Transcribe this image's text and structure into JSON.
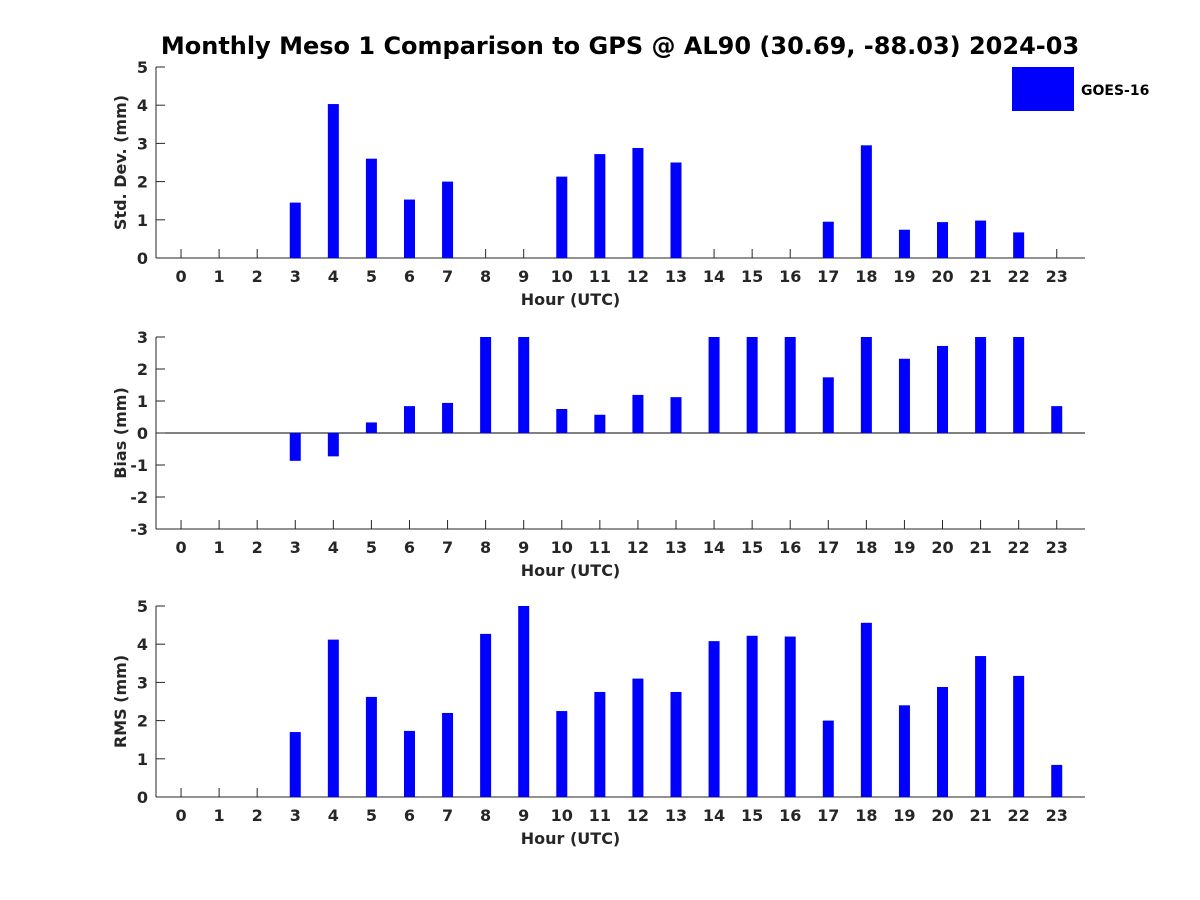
{
  "title": "Monthly Meso 1 Comparison to GPS @ AL90 (30.69, -88.03) 2024-03",
  "legend": {
    "label": "GOES-16",
    "color": "#0000ff"
  },
  "chart_data": [
    {
      "type": "bar",
      "name": "std-dev",
      "ylabel": "Std. Dev. (mm)",
      "xlabel": "Hour (UTC)",
      "ylim": [
        0,
        5
      ],
      "yticks": [
        "0",
        "1",
        "2",
        "3",
        "4",
        "5"
      ],
      "categories": [
        "0",
        "1",
        "2",
        "3",
        "4",
        "5",
        "6",
        "7",
        "8",
        "9",
        "10",
        "11",
        "12",
        "13",
        "14",
        "15",
        "16",
        "17",
        "18",
        "19",
        "20",
        "21",
        "22",
        "23"
      ],
      "values": [
        null,
        null,
        null,
        1.45,
        4.03,
        2.6,
        1.53,
        2.0,
        null,
        null,
        2.13,
        2.72,
        2.88,
        2.5,
        null,
        null,
        null,
        0.95,
        2.95,
        0.74,
        0.94,
        0.98,
        0.67,
        null
      ],
      "color": "#0000ff"
    },
    {
      "type": "bar",
      "name": "bias",
      "ylabel": "Bias (mm)",
      "xlabel": "Hour (UTC)",
      "ylim": [
        -3,
        3
      ],
      "yticks": [
        "-3",
        "-2",
        "-1",
        "0",
        "1",
        "2",
        "3"
      ],
      "categories": [
        "0",
        "1",
        "2",
        "3",
        "4",
        "5",
        "6",
        "7",
        "8",
        "9",
        "10",
        "11",
        "12",
        "13",
        "14",
        "15",
        "16",
        "17",
        "18",
        "19",
        "20",
        "21",
        "22",
        "23"
      ],
      "values": [
        null,
        null,
        null,
        -0.87,
        -0.73,
        0.33,
        0.84,
        0.94,
        3.0,
        3.0,
        0.75,
        0.57,
        1.19,
        1.12,
        3.0,
        3.0,
        3.0,
        1.74,
        3.0,
        2.32,
        2.72,
        3.0,
        3.0,
        0.84
      ],
      "color": "#0000ff"
    },
    {
      "type": "bar",
      "name": "rms",
      "ylabel": "RMS (mm)",
      "xlabel": "Hour (UTC)",
      "ylim": [
        0,
        5
      ],
      "yticks": [
        "0",
        "1",
        "2",
        "3",
        "4",
        "5"
      ],
      "categories": [
        "0",
        "1",
        "2",
        "3",
        "4",
        "5",
        "6",
        "7",
        "8",
        "9",
        "10",
        "11",
        "12",
        "13",
        "14",
        "15",
        "16",
        "17",
        "18",
        "19",
        "20",
        "21",
        "22",
        "23"
      ],
      "values": [
        null,
        null,
        null,
        1.7,
        4.12,
        2.62,
        1.73,
        2.2,
        4.27,
        5.0,
        2.25,
        2.75,
        3.1,
        2.75,
        4.08,
        4.22,
        4.2,
        2.0,
        4.56,
        2.4,
        2.88,
        3.69,
        3.17,
        0.84
      ],
      "color": "#0000ff"
    }
  ]
}
